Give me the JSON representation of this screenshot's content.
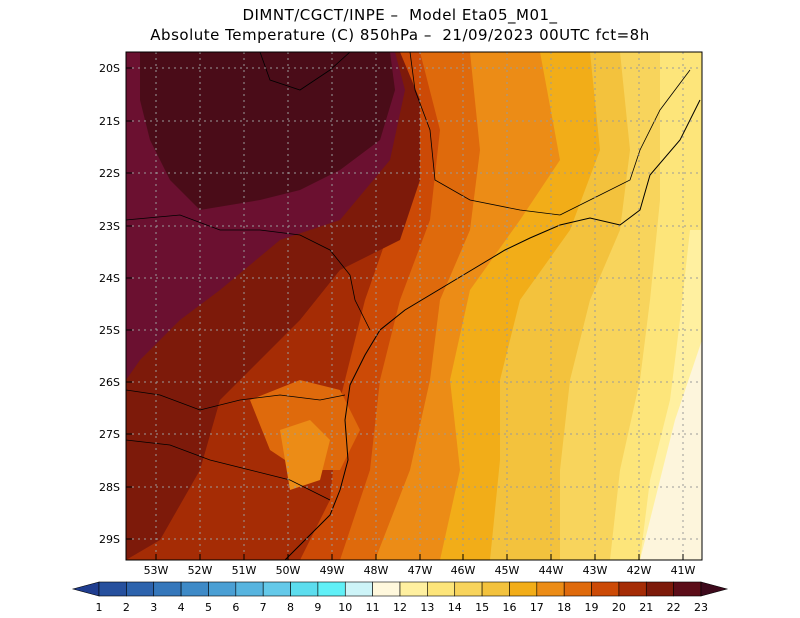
{
  "header": {
    "line1": "DIMNT/CGCT/INPE –  Model Eta05_M01_",
    "line2": "Absolute Temperature (C) 850hPa –  21/09/2023 00UTC fct=8h"
  },
  "axes": {
    "lat_labels": [
      "20S",
      "21S",
      "22S",
      "23S",
      "24S",
      "25S",
      "26S",
      "27S",
      "28S",
      "29S"
    ],
    "lon_labels": [
      "53W",
      "52W",
      "51W",
      "50W",
      "49W",
      "48W",
      "47W",
      "46W",
      "45W",
      "44W",
      "43W",
      "42W",
      "41W"
    ]
  },
  "colorbar": {
    "labels": [
      "1",
      "2",
      "3",
      "4",
      "5",
      "6",
      "7",
      "8",
      "9",
      "10",
      "11",
      "12",
      "13",
      "14",
      "15",
      "16",
      "17",
      "18",
      "19",
      "20",
      "21",
      "22",
      "23"
    ],
    "colors": [
      "#1f3d8f",
      "#26509e",
      "#2d63ad",
      "#3577bb",
      "#3e8ac7",
      "#4a9fd4",
      "#57b4df",
      "#64c9e9",
      "#5cddee",
      "#60f0f7",
      "#cdf4f8",
      "#fff8dd",
      "#fff0a0",
      "#fde57a",
      "#f8d45c",
      "#f3c23d",
      "#f2ad18",
      "#ec8c16",
      "#df6a0c",
      "#cc4a06",
      "#a52c05",
      "#7d1a0a",
      "#5c0d18",
      "#3e0a1c"
    ],
    "units": "C"
  },
  "map_data": {
    "region": "Southeastern/Southern Brazil",
    "lat_range": [
      -29.5,
      -19.8
    ],
    "lon_range": [
      -53.7,
      -40.6
    ],
    "variable": "Absolute Temperature 850hPa"
  }
}
